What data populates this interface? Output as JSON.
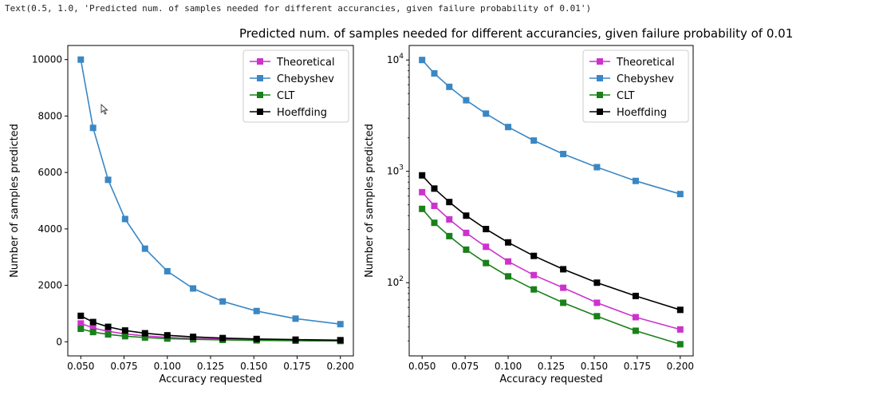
{
  "output_text": "Text(0.5, 1.0, 'Predicted num. of samples needed for different accurancies, given failure probability of 0.01')",
  "figure_title": "Predicted num. of samples needed for different accurancies, given failure probability of 0.01",
  "colors": {
    "Theoretical": "#cc33cc",
    "Chebyshev": "#3a87c4",
    "CLT": "#1a801a",
    "Hoeffding": "#000000"
  },
  "chart_data": [
    {
      "type": "line",
      "scale": "linear",
      "xlabel": "Accuracy requested",
      "ylabel": "Number of samples predicted",
      "xlim": [
        0.0425,
        0.2075
      ],
      "ylim": [
        -500,
        10500
      ],
      "xticks": [
        0.05,
        0.075,
        0.1,
        0.125,
        0.15,
        0.175,
        0.2
      ],
      "xtick_labels": [
        "0.050",
        "0.075",
        "0.100",
        "0.125",
        "0.150",
        "0.175",
        "0.200"
      ],
      "yticks": [
        0,
        2000,
        4000,
        6000,
        8000,
        10000
      ],
      "ytick_labels": [
        "0",
        "2000",
        "4000",
        "6000",
        "8000",
        "10000"
      ],
      "legend_position": "top-right",
      "x": [
        0.05,
        0.0571,
        0.0658,
        0.0756,
        0.0871,
        0.1,
        0.1149,
        0.132,
        0.1516,
        0.1741,
        0.2
      ],
      "series": [
        {
          "name": "Theoretical",
          "values": [
            650,
            490,
            370,
            280,
            210,
            155,
            117,
            90,
            66,
            49,
            38
          ]
        },
        {
          "name": "Chebyshev",
          "values": [
            10000,
            7580,
            5740,
            4350,
            3300,
            2500,
            1890,
            1430,
            1090,
            820,
            625
          ]
        },
        {
          "name": "CLT",
          "values": [
            460,
            345,
            262,
            198,
            150,
            114,
            87,
            66,
            50,
            37,
            28
          ]
        },
        {
          "name": "Hoeffding",
          "values": [
            920,
            700,
            530,
            400,
            303,
            230,
            174,
            132,
            100,
            76,
            57
          ]
        }
      ]
    },
    {
      "type": "line",
      "scale": "log",
      "xlabel": "Accuracy requested",
      "ylabel": "Number of samples predicted",
      "xlim": [
        0.0425,
        0.2075
      ],
      "ylim": [
        22,
        13500
      ],
      "xticks": [
        0.05,
        0.075,
        0.1,
        0.125,
        0.15,
        0.175,
        0.2
      ],
      "xtick_labels": [
        "0.050",
        "0.075",
        "0.100",
        "0.125",
        "0.150",
        "0.175",
        "0.200"
      ],
      "yticks": [
        100,
        1000,
        10000
      ],
      "ytick_base": "10",
      "ytick_exponents": [
        "2",
        "3",
        "4"
      ],
      "legend_position": "top-right",
      "x": [
        0.05,
        0.0571,
        0.0658,
        0.0756,
        0.0871,
        0.1,
        0.1149,
        0.132,
        0.1516,
        0.1741,
        0.2
      ],
      "series": [
        {
          "name": "Theoretical",
          "values": [
            650,
            490,
            370,
            280,
            210,
            155,
            117,
            90,
            66,
            49,
            38
          ]
        },
        {
          "name": "Chebyshev",
          "values": [
            10000,
            7580,
            5740,
            4350,
            3300,
            2500,
            1890,
            1430,
            1090,
            820,
            625
          ]
        },
        {
          "name": "CLT",
          "values": [
            460,
            345,
            262,
            198,
            150,
            114,
            87,
            66,
            50,
            37,
            28
          ]
        },
        {
          "name": "Hoeffding",
          "values": [
            920,
            700,
            530,
            400,
            303,
            230,
            174,
            132,
            100,
            76,
            57
          ]
        }
      ]
    }
  ]
}
